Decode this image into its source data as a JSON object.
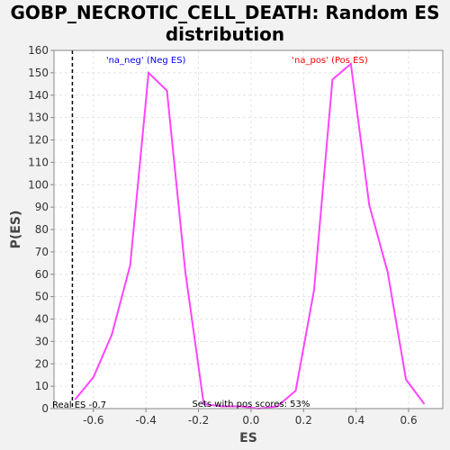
{
  "chart_data": {
    "type": "line",
    "title": "GOBP_NECROTIC_CELL_DEATH: Random ES distribution",
    "xlabel": "ES",
    "ylabel": "P(ES)",
    "xlim": [
      -0.75,
      0.73
    ],
    "ylim": [
      0,
      160
    ],
    "xticks": [
      -0.6,
      -0.4,
      -0.2,
      0.0,
      0.2,
      0.4,
      0.6
    ],
    "xtick_labels": [
      "-0.6",
      "-0.4",
      "-0.2",
      "0.0",
      "0.2",
      "0.4",
      "0.6"
    ],
    "yticks": [
      0,
      10,
      20,
      30,
      40,
      50,
      60,
      70,
      80,
      90,
      100,
      110,
      120,
      130,
      140,
      150,
      160
    ],
    "ytick_labels": [
      "0",
      "10",
      "20",
      "30",
      "40",
      "50",
      "60",
      "70",
      "80",
      "90",
      "100",
      "110",
      "120",
      "130",
      "140",
      "150",
      "160"
    ],
    "grid": true,
    "series": [
      {
        "color": "#ff44ff",
        "x": [
          -0.67,
          -0.6,
          -0.53,
          -0.46,
          -0.39,
          -0.32,
          -0.25,
          -0.18,
          -0.11,
          -0.04,
          0.03,
          0.1,
          0.17,
          0.24,
          0.31,
          0.38,
          0.45,
          0.52,
          0.59,
          0.66
        ],
        "y": [
          4,
          14,
          33,
          64,
          150,
          142,
          61,
          2,
          1,
          1,
          0,
          1,
          8,
          53,
          147,
          154,
          91,
          61,
          13,
          2
        ]
      }
    ],
    "annotations": {
      "neg_label": "'na_neg' (Neg ES)",
      "pos_label": "'na_pos' (Pos ES)",
      "neg_color": "#0000ff",
      "pos_color": "#ff0000",
      "real_es_text": "Real ES -0.7",
      "real_es_value": -0.68,
      "pos_scores_text": "Sets with pos scores: 53%"
    }
  }
}
